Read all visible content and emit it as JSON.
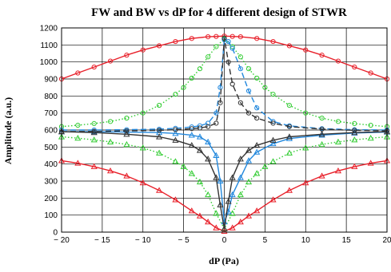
{
  "chart_data": {
    "type": "line",
    "title": "FW and BW vs dP for 4 different design of STWR",
    "xlabel": "dP (Pa)",
    "ylabel": "Amplitude (a.u.)",
    "xlim": [
      -20,
      20
    ],
    "ylim": [
      0,
      1200
    ],
    "xticks": [
      -20,
      -15,
      -10,
      -5,
      0,
      5,
      10,
      15,
      20
    ],
    "xtick_labels": [
      "− 20",
      "− 15",
      "− 10",
      "− 5",
      "0",
      "5",
      "10",
      "15",
      "20"
    ],
    "yticks": [
      0,
      100,
      200,
      300,
      400,
      500,
      600,
      700,
      800,
      900,
      1000,
      1100,
      1200
    ],
    "grid": true,
    "series": [
      {
        "color": "#e8202a",
        "marker": "circle",
        "dash": "solid",
        "x": [
          -20,
          -18,
          -16,
          -14,
          -12,
          -10,
          -8,
          -6,
          -4,
          -2,
          -1,
          0,
          1,
          2,
          4,
          6,
          8,
          10,
          12,
          14,
          16,
          18,
          20
        ],
        "y": [
          900,
          935,
          970,
          1005,
          1040,
          1070,
          1095,
          1120,
          1138,
          1148,
          1150,
          1152,
          1150,
          1148,
          1138,
          1120,
          1095,
          1070,
          1040,
          1005,
          970,
          935,
          900
        ]
      },
      {
        "color": "#e8202a",
        "marker": "triangle",
        "dash": "solid",
        "x": [
          -20,
          -18,
          -16,
          -14,
          -12,
          -10,
          -8,
          -6,
          -4,
          -3,
          -2,
          -1,
          0,
          1,
          2,
          3,
          4,
          6,
          8,
          10,
          12,
          14,
          16,
          18,
          20
        ],
        "y": [
          420,
          405,
          385,
          360,
          330,
          290,
          245,
          190,
          125,
          95,
          60,
          25,
          5,
          25,
          60,
          95,
          125,
          190,
          245,
          290,
          330,
          360,
          385,
          405,
          420
        ]
      },
      {
        "color": "#33cc33",
        "marker": "circle",
        "dash": "dot",
        "x": [
          -20,
          -18,
          -16,
          -14,
          -12,
          -10,
          -8,
          -6,
          -5,
          -4,
          -3,
          -2,
          -1,
          0,
          1,
          2,
          3,
          4,
          5,
          6,
          8,
          10,
          12,
          14,
          16,
          18,
          20
        ],
        "y": [
          620,
          628,
          638,
          650,
          670,
          700,
          745,
          810,
          850,
          905,
          960,
          1030,
          1090,
          1135,
          1090,
          1030,
          960,
          905,
          850,
          810,
          745,
          700,
          670,
          650,
          638,
          628,
          620
        ]
      },
      {
        "color": "#33cc33",
        "marker": "triangle",
        "dash": "dot",
        "x": [
          -20,
          -18,
          -16,
          -14,
          -12,
          -10,
          -8,
          -6,
          -5,
          -4,
          -3,
          -2,
          -1,
          0,
          1,
          2,
          3,
          4,
          5,
          6,
          8,
          10,
          12,
          14,
          16,
          18,
          20
        ],
        "y": [
          560,
          552,
          542,
          530,
          515,
          495,
          465,
          415,
          385,
          345,
          295,
          220,
          110,
          20,
          110,
          220,
          295,
          345,
          385,
          415,
          465,
          495,
          515,
          530,
          542,
          552,
          560
        ]
      },
      {
        "color": "#2288dd",
        "marker": "circle",
        "dash": "dash",
        "x": [
          -20,
          -16,
          -12,
          -8,
          -6,
          -4,
          -3,
          -2,
          -1,
          -0.5,
          0,
          0.5,
          1,
          2,
          3,
          4,
          6,
          8,
          12,
          16,
          20
        ],
        "y": [
          600,
          600,
          602,
          605,
          610,
          618,
          625,
          640,
          700,
          850,
          1130,
          1120,
          1080,
          960,
          830,
          730,
          650,
          625,
          608,
          602,
          600
        ]
      },
      {
        "color": "#2288dd",
        "marker": "triangle",
        "dash": "solid",
        "x": [
          -20,
          -16,
          -12,
          -8,
          -6,
          -4,
          -3,
          -2,
          -1,
          -0.5,
          0,
          0.5,
          1,
          2,
          3,
          4,
          6,
          8,
          12,
          16,
          20
        ],
        "y": [
          590,
          590,
          588,
          585,
          580,
          570,
          560,
          530,
          450,
          300,
          60,
          120,
          220,
          320,
          420,
          470,
          520,
          550,
          570,
          582,
          588
        ]
      },
      {
        "color": "#333333",
        "marker": "circle",
        "dash": "dash",
        "x": [
          -20,
          -16,
          -12,
          -8,
          -6,
          -4,
          -3,
          -2,
          -1,
          -0.5,
          0,
          0.5,
          1,
          2,
          3,
          4,
          6,
          8,
          12,
          16,
          20
        ],
        "y": [
          590,
          592,
          595,
          598,
          602,
          608,
          612,
          620,
          640,
          760,
          1140,
          1000,
          870,
          760,
          700,
          670,
          640,
          620,
          605,
          598,
          595
        ]
      },
      {
        "color": "#333333",
        "marker": "triangle",
        "dash": "solid",
        "x": [
          -20,
          -16,
          -12,
          -8,
          -6,
          -4,
          -3,
          -2,
          -1,
          -0.5,
          0,
          0.5,
          1,
          2,
          3,
          4,
          6,
          8,
          12,
          16,
          20
        ],
        "y": [
          590,
          585,
          575,
          560,
          540,
          510,
          480,
          430,
          320,
          160,
          20,
          180,
          320,
          430,
          480,
          510,
          540,
          560,
          575,
          585,
          590
        ]
      }
    ]
  }
}
